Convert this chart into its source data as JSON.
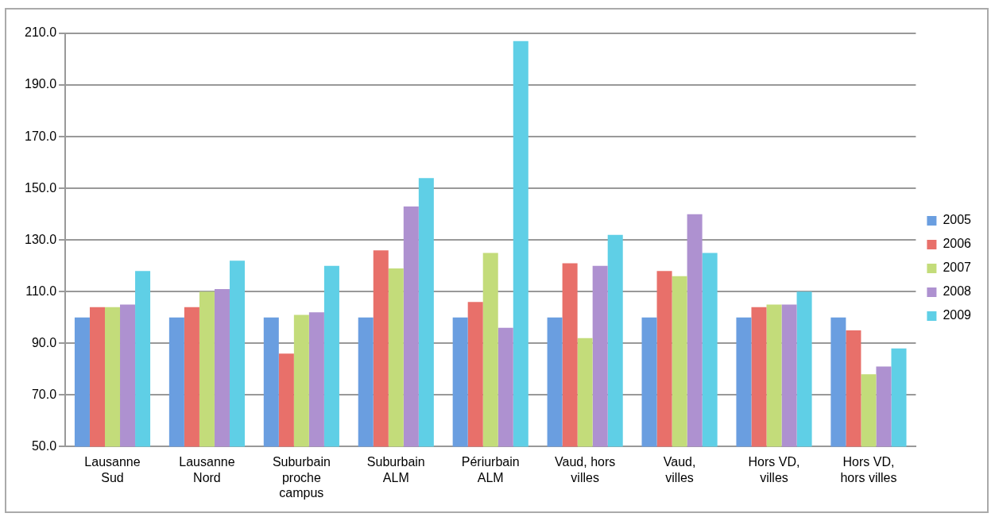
{
  "chart_data": {
    "type": "bar",
    "categories": [
      "Lausanne Sud",
      "Lausanne Nord",
      "Suburbain proche campus",
      "Suburbain ALM",
      "Périurbain ALM",
      "Vaud, hors villes",
      "Vaud, villes",
      "Hors VD, villes",
      "Hors VD, hors villes"
    ],
    "series": [
      {
        "name": "2005",
        "color": "#6a9ee0",
        "values": [
          100,
          100,
          100,
          100,
          100,
          100,
          100,
          100,
          100
        ]
      },
      {
        "name": "2006",
        "color": "#e8706a",
        "values": [
          104,
          104,
          86,
          126,
          106,
          121,
          118,
          104,
          95
        ]
      },
      {
        "name": "2007",
        "color": "#c3dc7a",
        "values": [
          104,
          110,
          101,
          119,
          125,
          92,
          116,
          105,
          78
        ]
      },
      {
        "name": "2008",
        "color": "#ae91d0",
        "values": [
          105,
          111,
          102,
          143,
          96,
          120,
          140,
          105,
          81
        ]
      },
      {
        "name": "2009",
        "color": "#5fcfe6",
        "values": [
          118,
          122,
          120,
          154,
          207,
          132,
          125,
          110,
          88
        ]
      }
    ],
    "ylim": [
      50,
      210
    ],
    "yticks": [
      {
        "value": 50,
        "label": "50.0"
      },
      {
        "value": 70,
        "label": "70.0"
      },
      {
        "value": 90,
        "label": "90.0"
      },
      {
        "value": 110,
        "label": "110.0"
      },
      {
        "value": 130,
        "label": "130.0"
      },
      {
        "value": 150,
        "label": "150.0"
      },
      {
        "value": 170,
        "label": "170.0"
      },
      {
        "value": 190,
        "label": "190.0"
      },
      {
        "value": 210,
        "label": "210.0"
      }
    ],
    "grid": "y",
    "legend": "right"
  }
}
